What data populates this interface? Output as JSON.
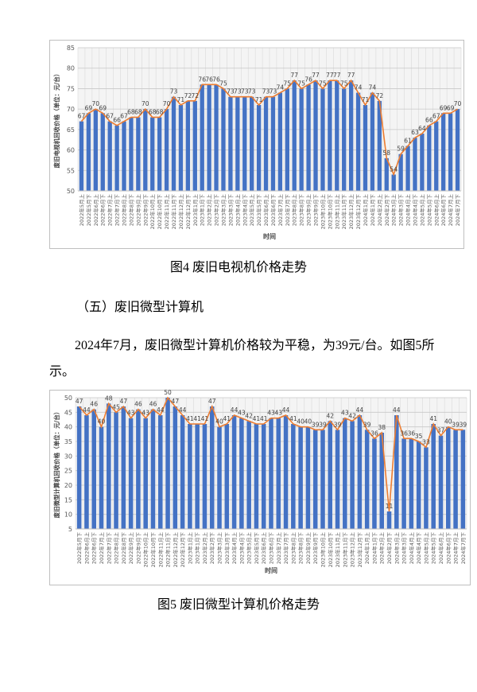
{
  "chart_data": [
    {
      "type": "bar",
      "color": "#4472c4",
      "line_color": "#ed7d31",
      "ylabel": "废旧电视机回收价格（单位：元/台）",
      "xlabel": "时间",
      "ylim": [
        50,
        85
      ],
      "yticks": [
        50,
        55,
        60,
        65,
        70,
        75,
        80,
        85
      ],
      "grid": true,
      "categories": [
        "2022年5月上",
        "2022年5月下",
        "2022年6月上",
        "2022年6月下",
        "2022年7月上",
        "2022年7月下",
        "2022年8月上",
        "2022年8月下",
        "2022年9月上",
        "2022年9月下",
        "2022年10月上",
        "2022年10月下",
        "2022年11月上",
        "2022年11月下",
        "2022年12月上",
        "2022年12月下",
        "2023年1月上",
        "2023年1月下",
        "2023年2月上",
        "2023年2月下",
        "2023年3月上",
        "2023年3月下",
        "2023年4月上",
        "2023年4月下",
        "2023年5月上",
        "2023年5月下",
        "2023年6月上",
        "2023年6月下",
        "2023年7月上",
        "2023年7月下",
        "2023年8月上",
        "2023年8月下",
        "2023年9月上",
        "2023年9月下",
        "2023年10月上",
        "2023年10月下",
        "2023年11月上",
        "2023年11月下",
        "2023年12月上",
        "2023年12月下",
        "2024年1月上",
        "2024年1月下",
        "2024年2月上",
        "2024年2月下",
        "2024年3月上",
        "2024年3月下",
        "2024年4月上",
        "2024年4月下",
        "2024年5月上",
        "2024年5月下",
        "2024年6月上",
        "2024年6月下",
        "2024年7月上",
        "2024年7月下"
      ],
      "values": [
        67,
        69,
        70,
        69,
        67,
        66,
        67,
        68,
        68,
        70,
        68,
        68,
        70,
        73,
        71,
        72,
        72,
        76,
        76,
        76,
        75,
        73,
        73,
        73,
        73,
        71,
        73,
        73,
        74,
        75,
        77,
        75,
        76,
        77,
        75,
        77,
        77,
        75,
        77,
        74,
        71,
        74,
        72,
        58,
        54,
        59,
        61,
        63,
        64,
        66,
        67,
        69,
        69,
        70
      ]
    },
    {
      "type": "bar",
      "color": "#4472c4",
      "line_color": "#ed7d31",
      "ylabel": "废旧微型计算机回收价格（单位：元/台）",
      "xlabel": "时间",
      "ylim": [
        5,
        50
      ],
      "yticks": [
        5,
        10,
        15,
        20,
        25,
        30,
        35,
        40,
        45,
        50
      ],
      "grid": true,
      "categories": [
        "2022年5月下",
        "2022年6月上",
        "2022年6月下",
        "2022年7月上",
        "2022年7月下",
        "2022年8月上",
        "2022年8月下",
        "2022年9月上",
        "2022年9月下",
        "2022年10月上",
        "2022年10月下",
        "2022年11月上",
        "2022年11月下",
        "2022年12月上",
        "2022年12月下",
        "2023年1月上",
        "2023年1月下",
        "2023年2月上",
        "2023年2月下",
        "2023年3月上",
        "2023年3月下",
        "2023年4月上",
        "2023年4月下",
        "2023年5月上",
        "2023年5月下",
        "2023年6月上",
        "2023年6月下",
        "2023年7月上",
        "2023年7月下",
        "2023年8月上",
        "2023年8月下",
        "2023年9月上",
        "2023年9月下",
        "2023年10月上",
        "2023年10月下",
        "2023年11月上",
        "2023年11月下",
        "2023年12月上",
        "2023年12月下",
        "2024年1月上",
        "2024年1月下",
        "2024年2月上",
        "2024年2月下",
        "2024年3月上",
        "2024年3月下",
        "2024年4月上",
        "2024年4月下",
        "2024年5月上",
        "2024年5月下",
        "2024年6月上",
        "2024年6月下",
        "2024年7月上",
        "2024年7月下"
      ],
      "values": [
        47,
        44,
        46,
        40,
        48,
        45,
        47,
        43,
        46,
        43,
        46,
        44,
        50,
        47,
        44,
        41,
        41,
        41,
        47,
        40,
        41,
        44,
        43,
        42,
        41,
        41,
        43,
        43,
        44,
        41,
        40,
        40,
        39,
        39,
        42,
        39,
        43,
        42,
        44,
        39,
        36,
        38,
        11,
        44,
        36,
        36,
        35,
        33,
        41,
        37,
        40,
        39,
        39
      ]
    }
  ],
  "figure4_caption": "图4  废旧电视机价格走势",
  "section_heading": "（五）废旧微型计算机",
  "paragraph": "2024年7月，废旧微型计算机价格较为平稳，为39元/台。如图5所示。",
  "figure5_caption": "图5  废旧微型计算机价格走势"
}
